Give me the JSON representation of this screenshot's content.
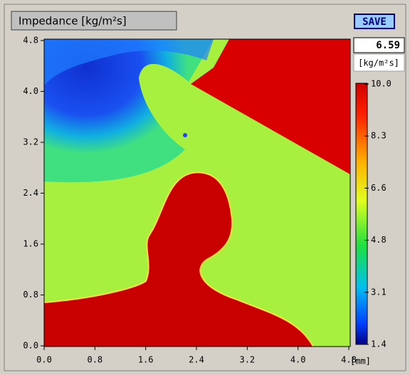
{
  "window": {
    "title": "Impedance [kg/m²s]",
    "button": "SAVE"
  },
  "readout": {
    "value": "6.59",
    "unit": "[kg/m²s]"
  },
  "x_axis": {
    "ticks": [
      "0.0",
      "0.8",
      "1.6",
      "2.4",
      "3.2",
      "4.0",
      "4.8"
    ],
    "unit": "[mm]"
  },
  "y_axis": {
    "ticks": [
      "0.0",
      "0.8",
      "1.6",
      "2.4",
      "3.2",
      "4.0",
      "4.8"
    ]
  },
  "colorbar": {
    "ticks": [
      "10.0",
      "8.3",
      "6.6",
      "4.8",
      "3.1",
      "1.4"
    ]
  }
}
